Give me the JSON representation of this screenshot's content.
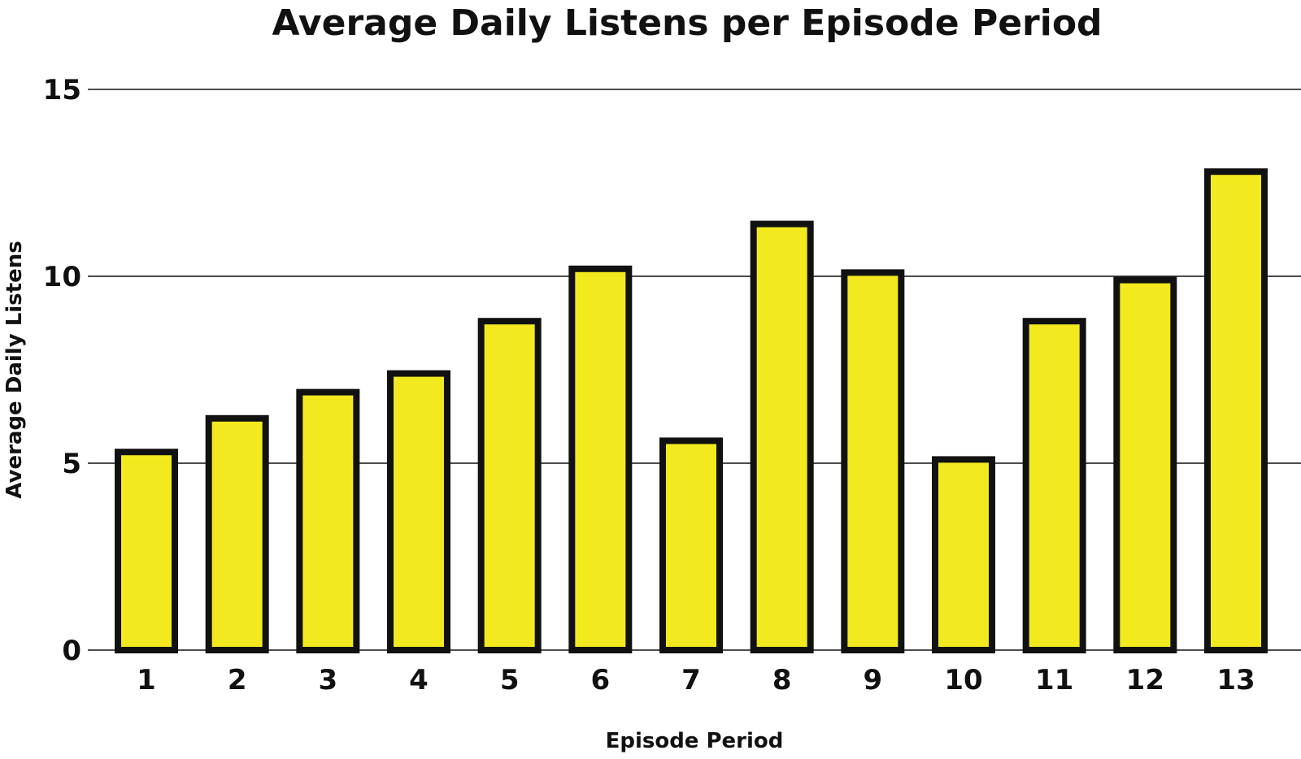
{
  "chart_data": {
    "type": "bar",
    "title": "Average Daily Listens per Episode Period",
    "xlabel": "Episode Period",
    "ylabel": "Average Daily Listens",
    "categories": [
      "1",
      "2",
      "3",
      "4",
      "5",
      "6",
      "7",
      "8",
      "9",
      "10",
      "11",
      "12",
      "13"
    ],
    "values": [
      5.3,
      6.2,
      6.9,
      7.4,
      8.8,
      10.2,
      5.6,
      11.4,
      10.1,
      5.1,
      8.8,
      9.9,
      12.8
    ],
    "ylim": [
      0,
      15
    ],
    "yticks": [
      0,
      5,
      10,
      15
    ],
    "grid": true,
    "legend": "none",
    "colors": {
      "bar_fill": "#f2ea1e",
      "bar_edge": "#111111",
      "grid": "#111111"
    }
  }
}
